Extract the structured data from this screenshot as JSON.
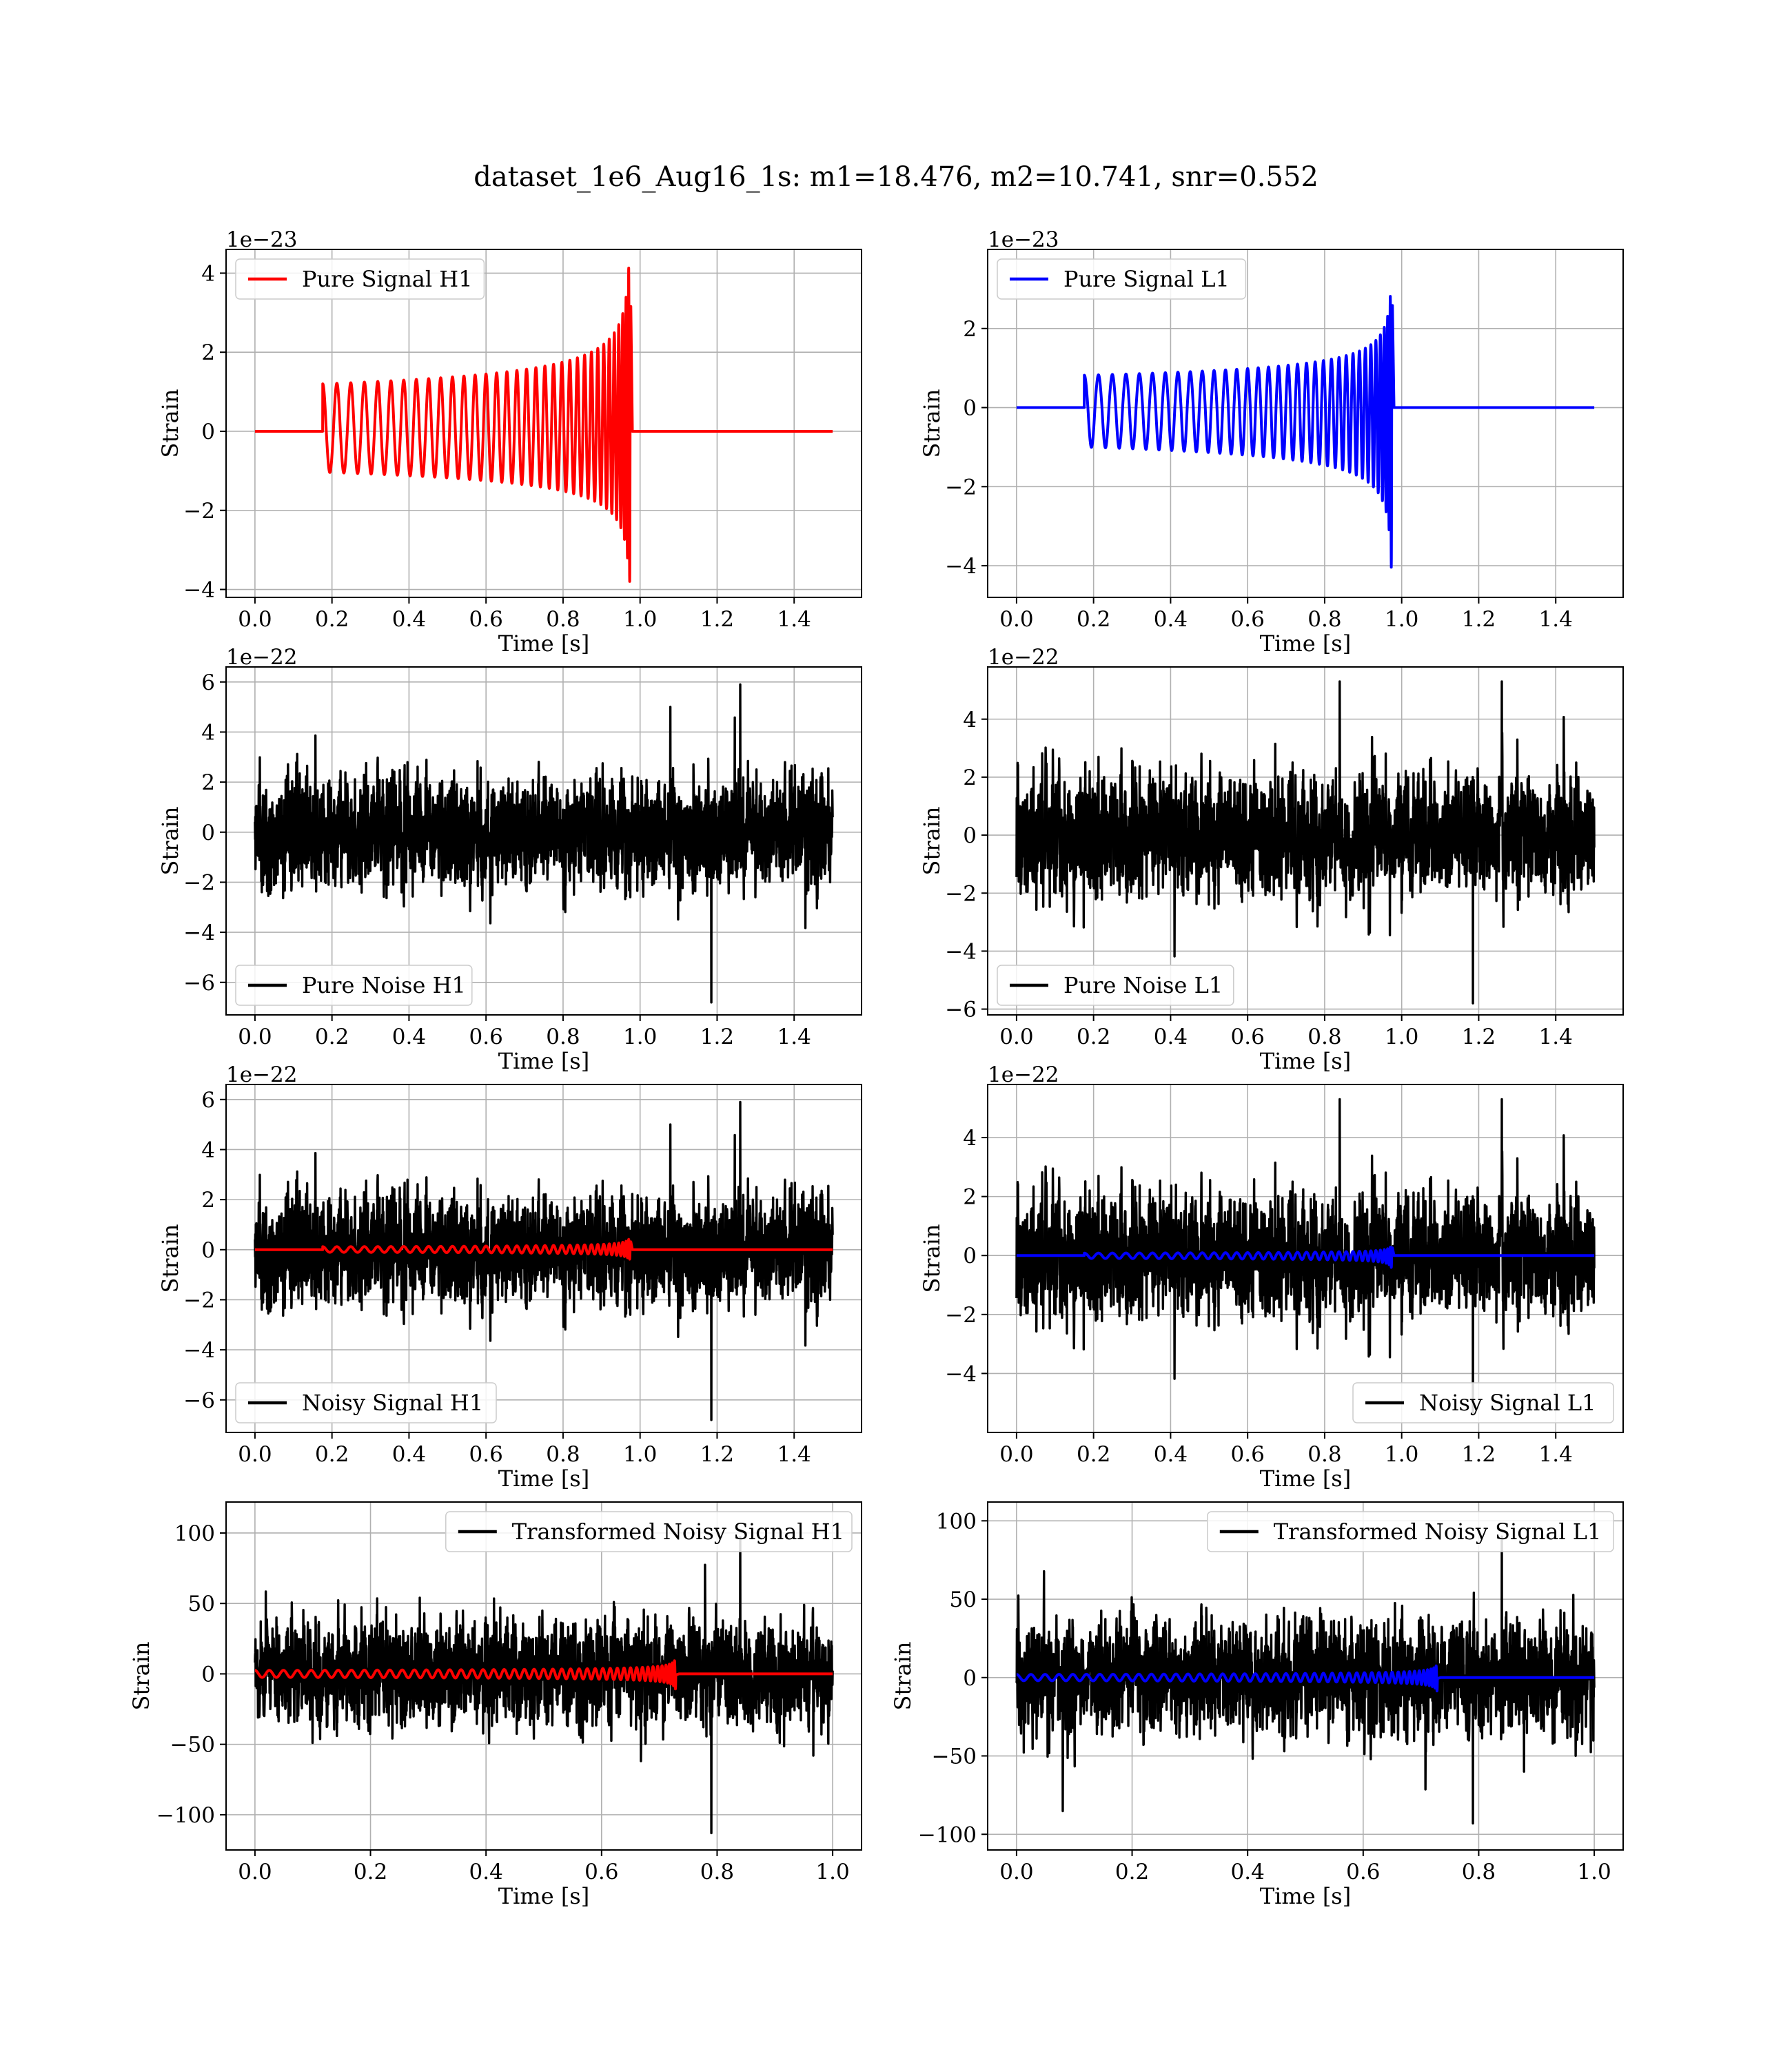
{
  "title": "dataset_1e6_Aug16_1s: m1=18.476, m2=10.741, snr=0.552",
  "chart_data": [
    {
      "id": "h1-pure-signal",
      "type": "line",
      "xlabel": "Time [s]",
      "ylabel": "Strain",
      "offset_text": "1e−23",
      "xlim": [
        -0.075,
        1.575
      ],
      "ylim": [
        -4.2,
        4.6
      ],
      "xticks": [
        0.0,
        0.2,
        0.4,
        0.6,
        0.8,
        1.0,
        1.2,
        1.4
      ],
      "xtick_labels": [
        "0.0",
        "0.2",
        "0.4",
        "0.6",
        "0.8",
        "1.0",
        "1.2",
        "1.4"
      ],
      "yticks": [
        -4,
        -2,
        0,
        2,
        4
      ],
      "ytick_labels": [
        "−4",
        "−2",
        "0",
        "2",
        "4"
      ],
      "grid": true,
      "legend_position": "upper-left",
      "series": [
        {
          "name": "Pure Signal H1",
          "color": "#ff0000",
          "kind": "chirp",
          "duration_s": 1.5,
          "t_start": 0.176,
          "t_merger": 0.976,
          "f_start": 27,
          "amp_start": 1.2,
          "amp_peak_pos": 4.4,
          "amp_peak_neg": -3.8
        }
      ]
    },
    {
      "id": "l1-pure-signal",
      "type": "line",
      "xlabel": "Time [s]",
      "ylabel": "Strain",
      "offset_text": "1e−23",
      "xlim": [
        -0.075,
        1.575
      ],
      "ylim": [
        -4.8,
        4.0
      ],
      "xticks": [
        0.0,
        0.2,
        0.4,
        0.6,
        0.8,
        1.0,
        1.2,
        1.4
      ],
      "xtick_labels": [
        "0.0",
        "0.2",
        "0.4",
        "0.6",
        "0.8",
        "1.0",
        "1.2",
        "1.4"
      ],
      "yticks": [
        -4,
        -2,
        0,
        2
      ],
      "ytick_labels": [
        "−4",
        "−2",
        "0",
        "2"
      ],
      "grid": true,
      "legend_position": "upper-left",
      "series": [
        {
          "name": "Pure Signal L1",
          "color": "#0000ff",
          "kind": "chirp",
          "duration_s": 1.5,
          "t_start": 0.176,
          "t_merger": 0.976,
          "f_start": 27,
          "amp_start": 1.0,
          "amp_peak_pos": 3.6,
          "amp_peak_neg": -4.4
        }
      ]
    },
    {
      "id": "h1-pure-noise",
      "type": "line",
      "xlabel": "Time [s]",
      "ylabel": "Strain",
      "offset_text": "1e−22",
      "xlim": [
        -0.075,
        1.575
      ],
      "ylim": [
        -7.3,
        6.6
      ],
      "xticks": [
        0.0,
        0.2,
        0.4,
        0.6,
        0.8,
        1.0,
        1.2,
        1.4
      ],
      "xtick_labels": [
        "0.0",
        "0.2",
        "0.4",
        "0.6",
        "0.8",
        "1.0",
        "1.2",
        "1.4"
      ],
      "yticks": [
        -6,
        -4,
        -2,
        0,
        2,
        4,
        6
      ],
      "ytick_labels": [
        "−6",
        "−4",
        "−2",
        "0",
        "2",
        "4",
        "6"
      ],
      "grid": true,
      "legend_position": "lower-left",
      "series": [
        {
          "name": "Pure Noise H1",
          "color": "#000000",
          "kind": "noise",
          "duration_s": 1.5,
          "seed": 11,
          "sigma": 1.55,
          "max": 5.9,
          "min": -6.8
        }
      ]
    },
    {
      "id": "l1-pure-noise",
      "type": "line",
      "xlabel": "Time [s]",
      "ylabel": "Strain",
      "offset_text": "1e−22",
      "xlim": [
        -0.075,
        1.575
      ],
      "ylim": [
        -6.2,
        5.8
      ],
      "xticks": [
        0.0,
        0.2,
        0.4,
        0.6,
        0.8,
        1.0,
        1.2,
        1.4
      ],
      "xtick_labels": [
        "0.0",
        "0.2",
        "0.4",
        "0.6",
        "0.8",
        "1.0",
        "1.2",
        "1.4"
      ],
      "yticks": [
        -6,
        -4,
        -2,
        0,
        2,
        4
      ],
      "ytick_labels": [
        "−6",
        "−4",
        "−2",
        "0",
        "2",
        "4"
      ],
      "grid": true,
      "legend_position": "lower-left",
      "series": [
        {
          "name": "Pure Noise L1",
          "color": "#000000",
          "kind": "noise",
          "duration_s": 1.5,
          "seed": 23,
          "sigma": 1.45,
          "max": 5.3,
          "min": -5.8
        }
      ]
    },
    {
      "id": "h1-noisy-signal",
      "type": "line",
      "xlabel": "Time [s]",
      "ylabel": "Strain",
      "offset_text": "1e−22",
      "xlim": [
        -0.075,
        1.575
      ],
      "ylim": [
        -7.3,
        6.6
      ],
      "xticks": [
        0.0,
        0.2,
        0.4,
        0.6,
        0.8,
        1.0,
        1.2,
        1.4
      ],
      "xtick_labels": [
        "0.0",
        "0.2",
        "0.4",
        "0.6",
        "0.8",
        "1.0",
        "1.2",
        "1.4"
      ],
      "yticks": [
        -6,
        -4,
        -2,
        0,
        2,
        4,
        6
      ],
      "ytick_labels": [
        "−6",
        "−4",
        "−2",
        "0",
        "2",
        "4",
        "6"
      ],
      "grid": true,
      "legend_position": "lower-left",
      "series": [
        {
          "name": "Noisy Signal H1",
          "color": "#000000",
          "kind": "noise",
          "duration_s": 1.5,
          "seed": 11,
          "sigma": 1.55,
          "max": 5.9,
          "min": -6.8
        },
        {
          "color": "#ff0000",
          "kind": "chirp",
          "duration_s": 1.5,
          "t_start": 0.176,
          "t_merger": 0.976,
          "f_start": 27,
          "amp_start": 0.12,
          "amp_peak_pos": 0.44,
          "amp_peak_neg": -0.38
        }
      ]
    },
    {
      "id": "l1-noisy-signal",
      "type": "line",
      "xlabel": "Time [s]",
      "ylabel": "Strain",
      "offset_text": "1e−22",
      "xlim": [
        -0.075,
        1.575
      ],
      "ylim": [
        -6.0,
        5.8
      ],
      "xticks": [
        0.0,
        0.2,
        0.4,
        0.6,
        0.8,
        1.0,
        1.2,
        1.4
      ],
      "xtick_labels": [
        "0.0",
        "0.2",
        "0.4",
        "0.6",
        "0.8",
        "1.0",
        "1.2",
        "1.4"
      ],
      "yticks": [
        -4,
        -2,
        0,
        2,
        4
      ],
      "ytick_labels": [
        "−4",
        "−2",
        "0",
        "2",
        "4"
      ],
      "grid": true,
      "legend_position": "lower-right",
      "series": [
        {
          "name": "Noisy Signal L1",
          "color": "#000000",
          "kind": "noise",
          "duration_s": 1.5,
          "seed": 23,
          "sigma": 1.45,
          "max": 5.3,
          "min": -5.4
        },
        {
          "color": "#0000ff",
          "kind": "chirp",
          "duration_s": 1.5,
          "t_start": 0.176,
          "t_merger": 0.976,
          "f_start": 27,
          "amp_start": 0.1,
          "amp_peak_pos": 0.36,
          "amp_peak_neg": -0.44
        }
      ]
    },
    {
      "id": "h1-transformed",
      "type": "line",
      "xlabel": "Time [s]",
      "ylabel": "Strain",
      "offset_text": "",
      "xlim": [
        -0.05,
        1.05
      ],
      "ylim": [
        -125,
        122
      ],
      "xticks": [
        0.0,
        0.2,
        0.4,
        0.6,
        0.8,
        1.0
      ],
      "xtick_labels": [
        "0.0",
        "0.2",
        "0.4",
        "0.6",
        "0.8",
        "1.0"
      ],
      "yticks": [
        -100,
        -50,
        0,
        50,
        100
      ],
      "ytick_labels": [
        "−100",
        "−50",
        "0",
        "50",
        "100"
      ],
      "grid": true,
      "legend_position": "upper-right",
      "series": [
        {
          "name": "Transformed Noisy Signal H1",
          "color": "#000000",
          "kind": "noise",
          "duration_s": 1.0,
          "seed": 37,
          "sigma": 26,
          "max": 97,
          "min": -113
        },
        {
          "color": "#ff0000",
          "kind": "chirp",
          "duration_s": 1.0,
          "t_start": 0.0,
          "t_merger": 0.73,
          "f_start": 40,
          "amp_start": 2.5,
          "amp_peak_pos": 12,
          "amp_peak_neg": -12
        }
      ]
    },
    {
      "id": "l1-transformed",
      "type": "line",
      "xlabel": "Time [s]",
      "ylabel": "Strain",
      "offset_text": "",
      "xlim": [
        -0.05,
        1.05
      ],
      "ylim": [
        -110,
        112
      ],
      "xticks": [
        0.0,
        0.2,
        0.4,
        0.6,
        0.8,
        1.0
      ],
      "xtick_labels": [
        "0.0",
        "0.2",
        "0.4",
        "0.6",
        "0.8",
        "1.0"
      ],
      "yticks": [
        -100,
        -50,
        0,
        50,
        100
      ],
      "ytick_labels": [
        "−100",
        "−50",
        "0",
        "50",
        "100"
      ],
      "grid": true,
      "legend_position": "upper-right",
      "series": [
        {
          "name": "Transformed Noisy Signal L1",
          "color": "#000000",
          "kind": "noise",
          "duration_s": 1.0,
          "seed": 53,
          "sigma": 25,
          "max": 90,
          "min": -93
        },
        {
          "color": "#0000ff",
          "kind": "chirp",
          "duration_s": 1.0,
          "t_start": 0.0,
          "t_merger": 0.73,
          "f_start": 40,
          "amp_start": 2.0,
          "amp_peak_pos": 11,
          "amp_peak_neg": -11
        }
      ]
    }
  ]
}
